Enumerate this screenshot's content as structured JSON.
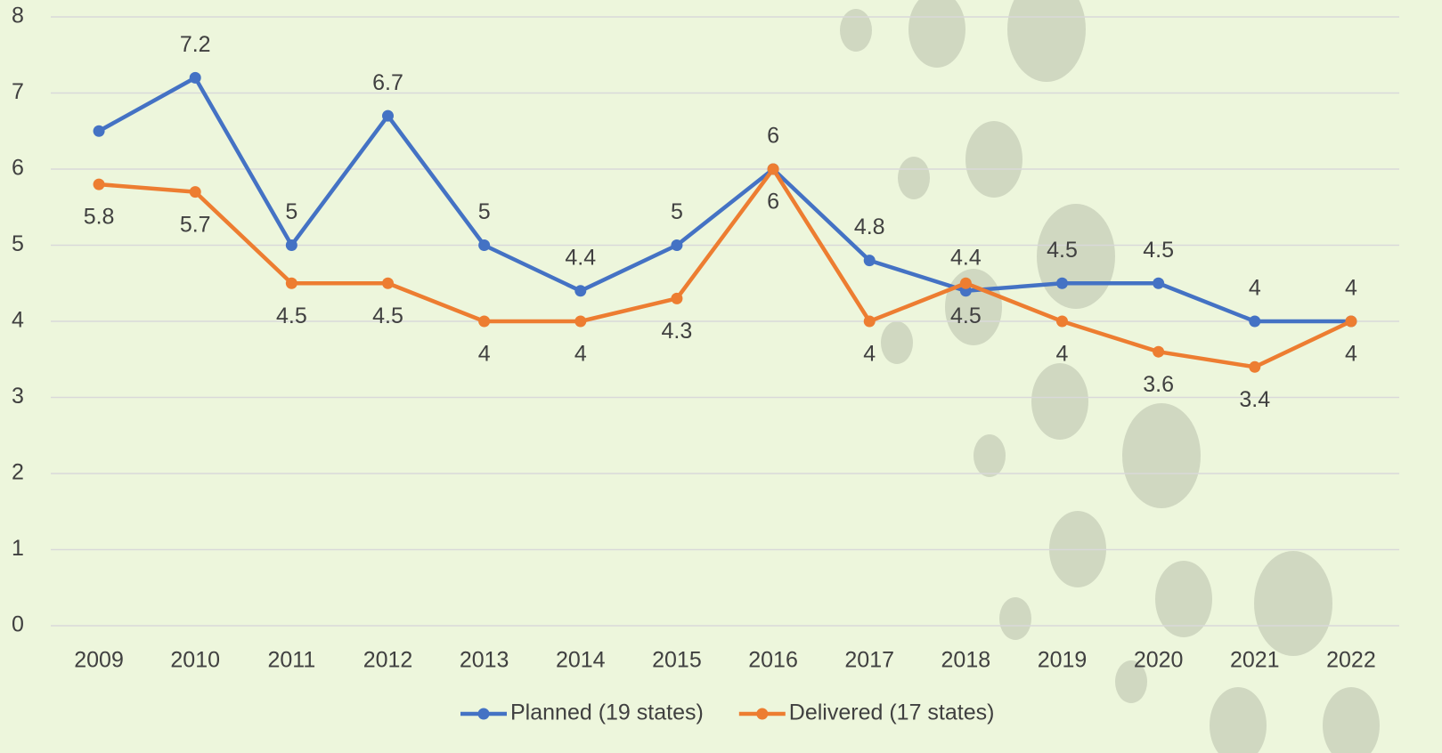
{
  "chart_data": {
    "type": "line",
    "categories": [
      "2009",
      "2010",
      "2011",
      "2012",
      "2013",
      "2014",
      "2015",
      "2016",
      "2017",
      "2018",
      "2019",
      "2020",
      "2021",
      "2022"
    ],
    "series": [
      {
        "name": "Planned (19 states)",
        "color": "#4472c4",
        "values": [
          6.5,
          7.2,
          5,
          6.7,
          5,
          4.4,
          5,
          6,
          4.8,
          4.4,
          4.5,
          4.5,
          4,
          4
        ],
        "value_labels": [
          null,
          "7.2",
          "5",
          "6.7",
          "5",
          "4.4",
          "5",
          "6",
          "4.8",
          "4.4",
          "4.5",
          "4.5",
          "4",
          "4"
        ]
      },
      {
        "name": "Delivered (17 states)",
        "color": "#ed7d31",
        "values": [
          5.8,
          5.7,
          4.5,
          4.5,
          4,
          4,
          4.3,
          6,
          4,
          4.5,
          4,
          3.6,
          3.4,
          4
        ]
      }
    ],
    "ylim": [
      0,
      8
    ],
    "yticks": [
      0,
      1,
      2,
      3,
      4,
      5,
      6,
      7,
      8
    ],
    "grid": true,
    "legend": "bottom"
  }
}
